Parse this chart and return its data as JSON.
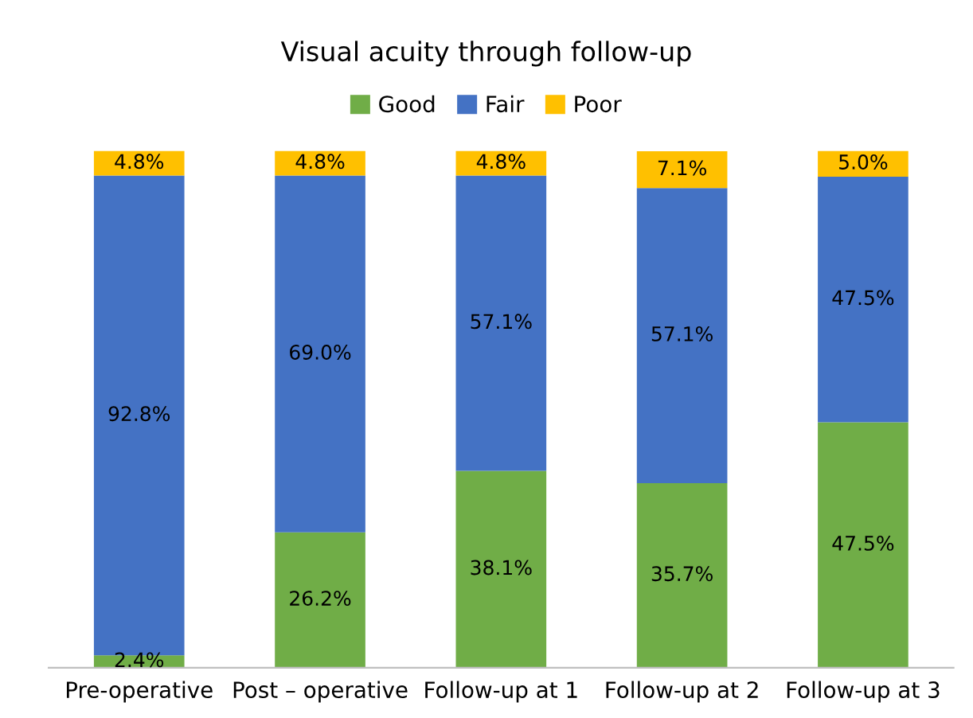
{
  "chart_data": {
    "type": "bar",
    "title": "Visual acuity through follow-up",
    "stacked": true,
    "categories": [
      "Pre-operative",
      "Post – operative",
      "Follow-up at 1",
      "Follow-up at 2",
      "Follow-up at 3"
    ],
    "series": [
      {
        "name": "Good",
        "color": "#70ad47",
        "values": [
          2.4,
          26.2,
          38.1,
          35.7,
          47.5
        ],
        "value_labels": [
          "2.4%",
          "26.2%",
          "38.1%",
          "35.7%",
          "47.5%"
        ]
      },
      {
        "name": "Fair",
        "color": "#4472c4",
        "values": [
          92.8,
          69.0,
          57.1,
          57.1,
          47.5
        ],
        "value_labels": [
          "92.8%",
          "69.0%",
          "57.1%",
          "57.1%",
          "47.5%"
        ]
      },
      {
        "name": "Poor",
        "color": "#ffc000",
        "values": [
          4.8,
          4.8,
          4.8,
          7.1,
          5.0
        ],
        "value_labels": [
          "4.8%",
          "4.8%",
          "4.8%",
          "7.1%",
          "5.0%"
        ]
      }
    ],
    "ylim": [
      0,
      100
    ],
    "tick_labels": "x",
    "legend": "top",
    "grid": false
  }
}
